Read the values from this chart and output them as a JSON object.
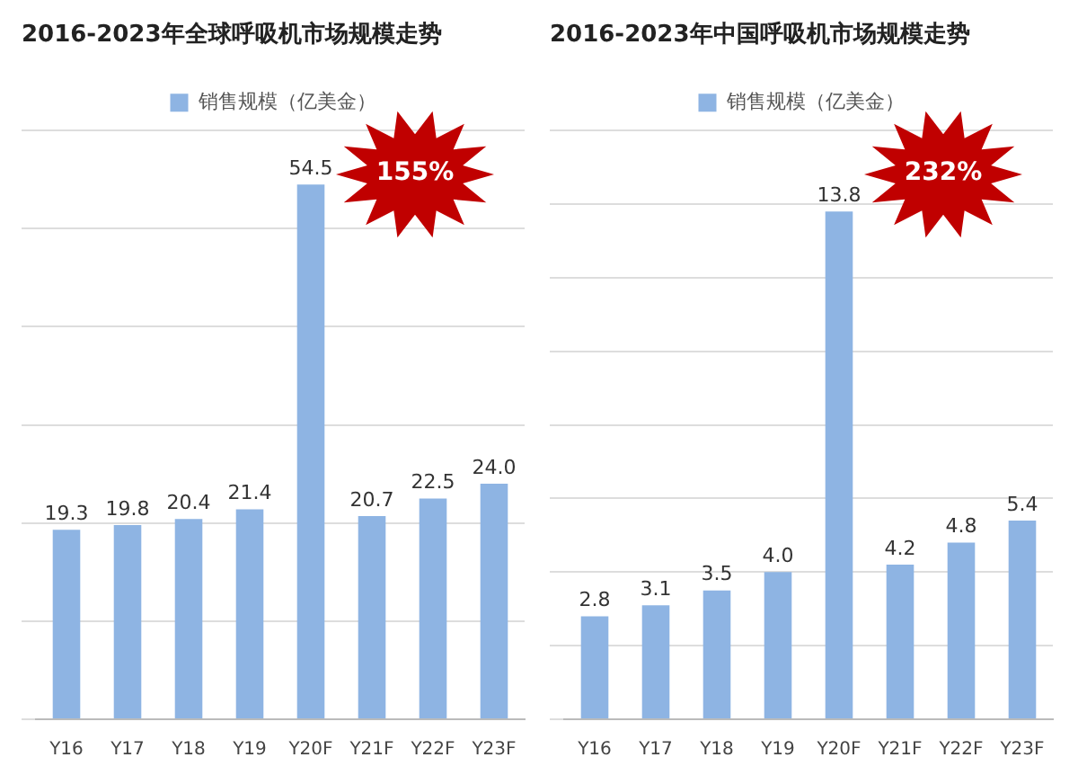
{
  "chart_data": [
    {
      "type": "bar",
      "title": "2016-2023年全球呼吸机市场规模走势",
      "categories": [
        "Y16",
        "Y17",
        "Y18",
        "Y19",
        "Y20F",
        "Y21F",
        "Y22F",
        "Y23F"
      ],
      "series": [
        {
          "name": "销售规模（亿美金）",
          "color": "#8eb4e3",
          "values": [
            19.3,
            19.8,
            20.4,
            21.4,
            54.5,
            20.7,
            22.5,
            24.0
          ],
          "value_labels": [
            "19.3",
            "19.8",
            "20.4",
            "21.4",
            "54.5",
            "20.7",
            "22.5",
            "24.0"
          ]
        }
      ],
      "annotations": [
        "155%"
      ],
      "grid": "y",
      "legend": "top",
      "tick_labels": "x"
    },
    {
      "type": "bar",
      "title": "2016-2023年中国呼吸机市场规模走势",
      "categories": [
        "Y16",
        "Y17",
        "Y18",
        "Y19",
        "Y20F",
        "Y21F",
        "Y22F",
        "Y23F"
      ],
      "series": [
        {
          "name": "销售规模（亿美金）",
          "color": "#8eb4e3",
          "values": [
            2.8,
            3.1,
            3.5,
            4.0,
            13.8,
            4.2,
            4.8,
            5.4
          ],
          "value_labels": [
            "2.8",
            "3.1",
            "3.5",
            "4.0",
            "13.8",
            "4.2",
            "4.8",
            "5.4"
          ]
        }
      ],
      "annotations": [
        "232%"
      ],
      "grid": "y",
      "legend": "top",
      "tick_labels": "x"
    }
  ]
}
